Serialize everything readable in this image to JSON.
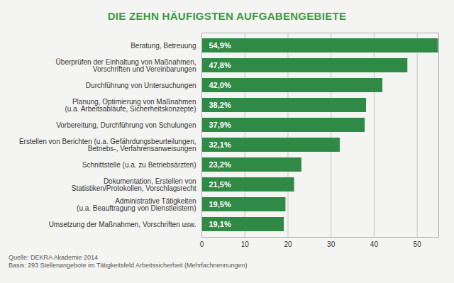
{
  "chart_data": {
    "type": "bar",
    "orientation": "horizontal",
    "title": "DIE ZEHN HÄUFIGSTEN AUFGABENGEBIETE",
    "categories": [
      "Beratung, Betreuung",
      "Überprüfen der Einhaltung von Maßnahmen,\nVorschriften und Vereinbarungen",
      "Durchführung von Untersuchungen",
      "Planung, Optimierung von Maßnahmen\n(u.a. Arbeitsabläufe, Sicherheitskonzepte)",
      "Vorbereitung, Durchführung von Schulungen",
      "Erstellen von Berichten (u.a. Gefährdungsbeurteilungen,\nBetriebs-, Verfahrensanweisungen",
      "Schnittstelle (u.a. zu Betriebsärzten)",
      "Dokumentation, Erstellen von\nStatistiken/Protokollen, Vorschlagsrecht",
      "Administrative Tätigkeiten\n(u.a. Beauftragung von Dienstleistern)",
      "Umsetzung der Maßnahmen, Vorschriften usw."
    ],
    "values": [
      54.9,
      47.8,
      42.0,
      38.2,
      37.9,
      32.1,
      23.2,
      21.5,
      19.5,
      19.1
    ],
    "value_labels": [
      "54,9%",
      "47,8%",
      "42,0%",
      "38,2%",
      "37,9%",
      "32,1%",
      "23,2%",
      "21,5%",
      "19,5%",
      "19,1%"
    ],
    "data_labels": true,
    "color": "#2f8a45",
    "xlim": [
      0,
      55
    ],
    "xticks": [
      0,
      10,
      20,
      30,
      40,
      50
    ],
    "grid": true,
    "notes": [
      "Quelle: DEKRA Akademie 2014",
      "Basis: 293 Stellenangebote im Tätigkeitsfeld Arbeitssicherheit (Mehrfachnennungen)"
    ]
  }
}
